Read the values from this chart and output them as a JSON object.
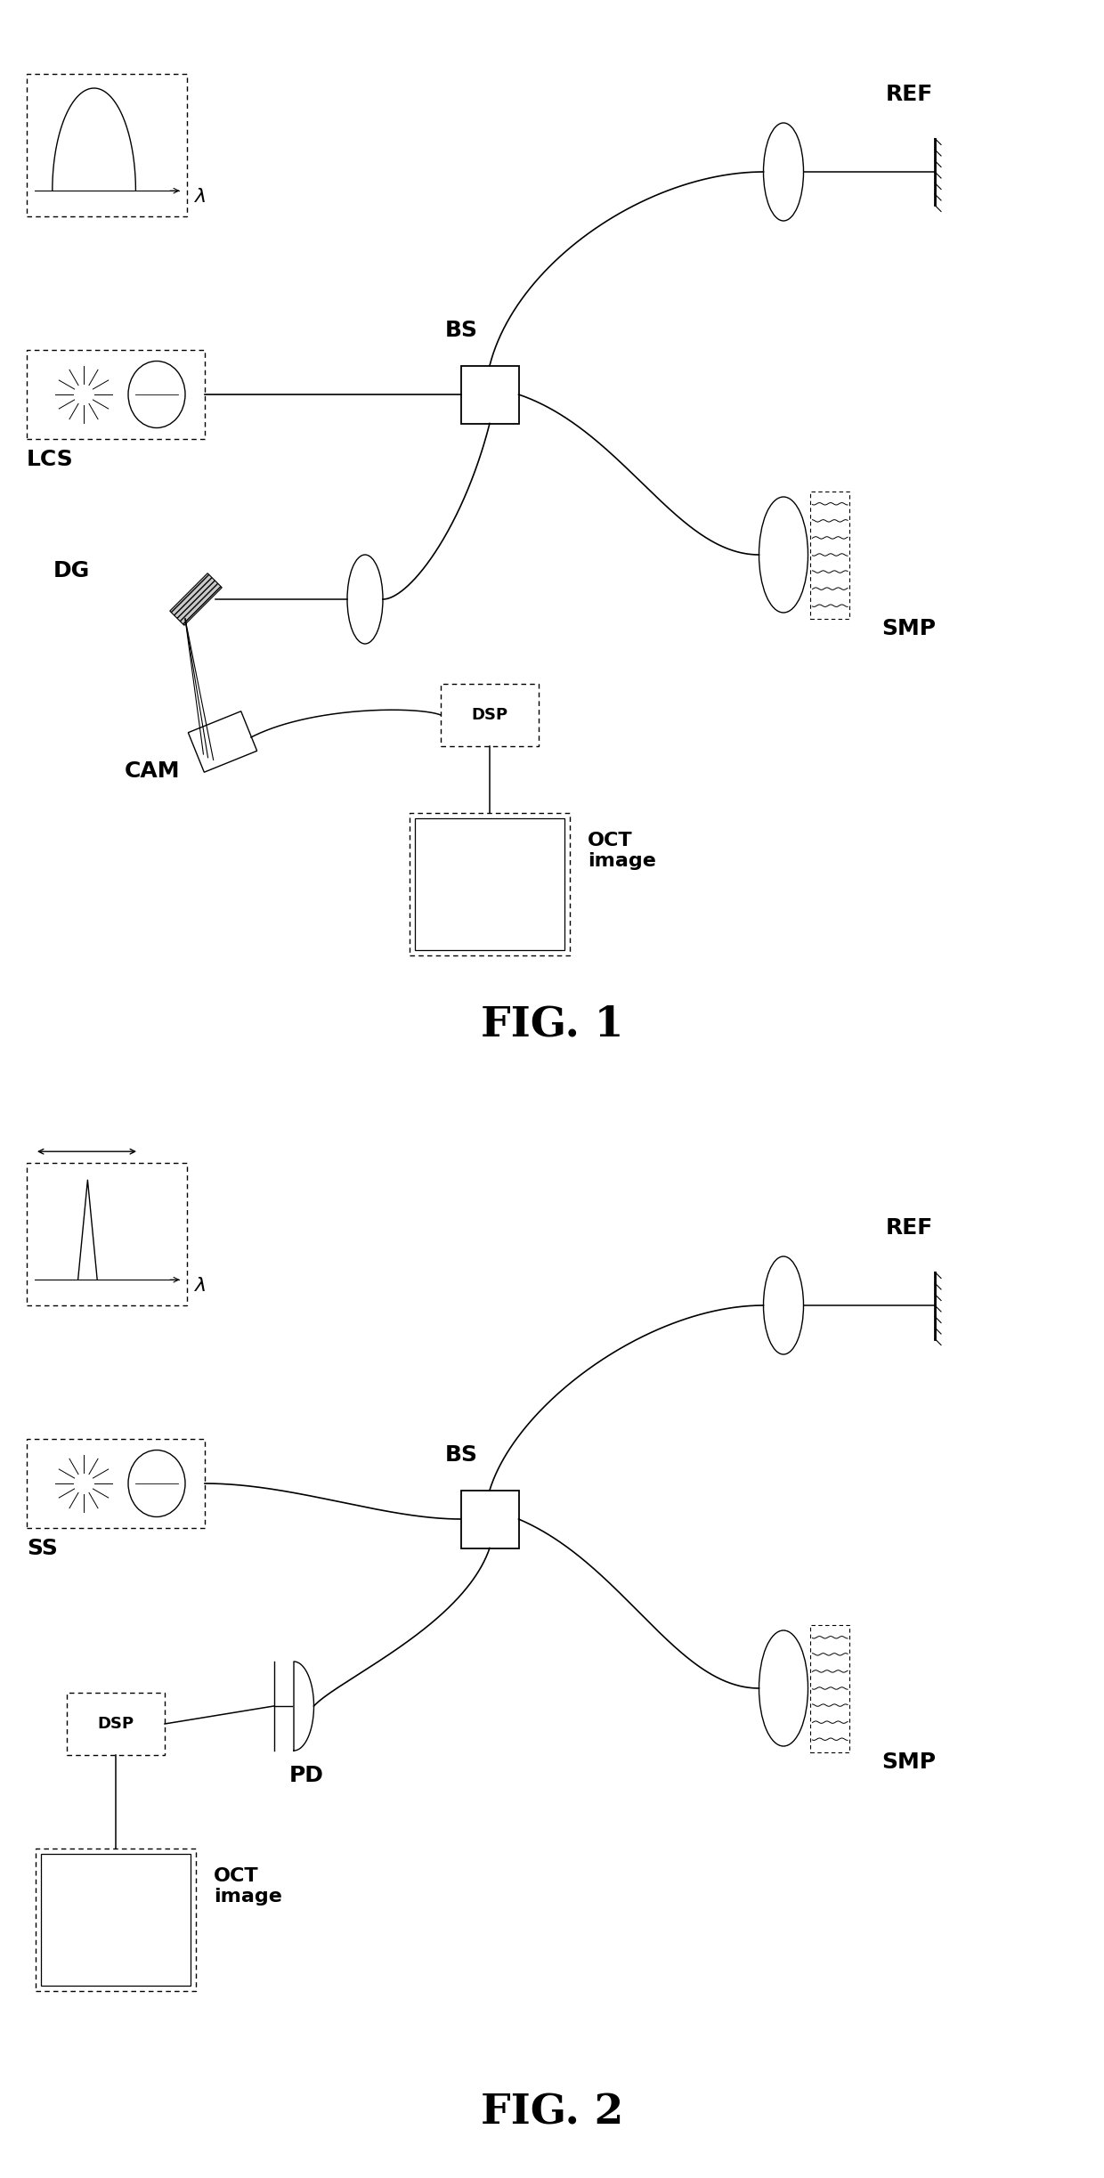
{
  "fig_width": 12.4,
  "fig_height": 24.46,
  "bg_color": "#ffffff",
  "line_color": "#000000",
  "fig1_title": "FIG. 1",
  "fig2_title": "FIG. 2",
  "labels": {
    "lambda": "λ",
    "LCS": "LCS",
    "BS": "BS",
    "REF": "REF",
    "SMP": "SMP",
    "DG": "DG",
    "CAM": "CAM",
    "DSP": "DSP",
    "OCT_image": "OCT\nimage",
    "SS": "SS",
    "PD": "PD"
  }
}
